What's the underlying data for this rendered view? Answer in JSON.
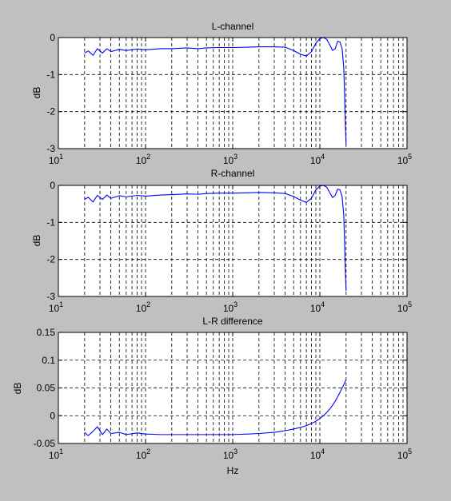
{
  "figure": {
    "background": "#c0c0c0",
    "trace_color": "#0000ff"
  },
  "chart_data": [
    {
      "type": "line",
      "title": "L-channel",
      "xlabel": "",
      "ylabel": "dB",
      "xscale": "log",
      "xlim": [
        10,
        100000
      ],
      "ylim": [
        -3,
        0
      ],
      "grid": true,
      "xticks": [
        10,
        100,
        1000,
        10000,
        100000
      ],
      "xtick_labels": [
        "10^1",
        "10^2",
        "10^3",
        "10^4",
        "10^5"
      ],
      "yticks": [
        0,
        -1,
        -2,
        -3
      ],
      "ytick_labels": [
        "0",
        "-1",
        "-2",
        "-3"
      ],
      "series": [
        {
          "x": [
            20,
            22,
            25,
            28,
            32,
            36,
            40,
            50,
            60,
            80,
            100,
            150,
            200,
            300,
            400,
            500,
            700,
            1000,
            1500,
            2000,
            3000,
            4000,
            5000,
            6000,
            7000,
            8000,
            9000,
            10000,
            11000,
            12000,
            13000,
            14000,
            15000,
            16000,
            17000,
            18000,
            18800,
            19200,
            19600,
            20000
          ],
          "y": [
            -0.42,
            -0.36,
            -0.48,
            -0.3,
            -0.42,
            -0.3,
            -0.38,
            -0.32,
            -0.35,
            -0.31,
            -0.33,
            -0.3,
            -0.3,
            -0.28,
            -0.3,
            -0.28,
            -0.27,
            -0.27,
            -0.26,
            -0.25,
            -0.25,
            -0.26,
            -0.35,
            -0.45,
            -0.5,
            -0.38,
            -0.15,
            -0.03,
            0.0,
            -0.05,
            -0.2,
            -0.35,
            -0.3,
            -0.1,
            -0.12,
            -0.3,
            -0.8,
            -1.5,
            -2.3,
            -2.9
          ]
        }
      ]
    },
    {
      "type": "line",
      "title": "R-channel",
      "xlabel": "",
      "ylabel": "dB",
      "xscale": "log",
      "xlim": [
        10,
        100000
      ],
      "ylim": [
        -3,
        0
      ],
      "grid": true,
      "xticks": [
        10,
        100,
        1000,
        10000,
        100000
      ],
      "xtick_labels": [
        "10^1",
        "10^2",
        "10^3",
        "10^4",
        "10^5"
      ],
      "yticks": [
        0,
        -1,
        -2,
        -3
      ],
      "ytick_labels": [
        "0",
        "-1",
        "-2",
        "-3"
      ],
      "series": [
        {
          "x": [
            20,
            22,
            25,
            28,
            32,
            36,
            40,
            50,
            60,
            80,
            100,
            150,
            200,
            300,
            400,
            500,
            700,
            1000,
            1500,
            2000,
            3000,
            4000,
            5000,
            6000,
            7000,
            8000,
            9000,
            10000,
            11000,
            12000,
            13000,
            14000,
            15000,
            16000,
            17000,
            18000,
            18800,
            19200,
            19600,
            20000
          ],
          "y": [
            -0.38,
            -0.32,
            -0.45,
            -0.27,
            -0.38,
            -0.26,
            -0.35,
            -0.28,
            -0.31,
            -0.27,
            -0.29,
            -0.26,
            -0.25,
            -0.23,
            -0.24,
            -0.22,
            -0.21,
            -0.21,
            -0.2,
            -0.19,
            -0.2,
            -0.22,
            -0.3,
            -0.4,
            -0.46,
            -0.35,
            -0.12,
            -0.02,
            0.0,
            -0.05,
            -0.2,
            -0.33,
            -0.27,
            -0.1,
            -0.12,
            -0.3,
            -0.8,
            -1.5,
            -2.3,
            -2.85
          ]
        }
      ]
    },
    {
      "type": "line",
      "title": "L-R difference",
      "xlabel": "Hz",
      "ylabel": "dB",
      "xscale": "log",
      "xlim": [
        10,
        100000
      ],
      "ylim": [
        -0.05,
        0.15
      ],
      "grid": true,
      "xticks": [
        10,
        100,
        1000,
        10000,
        100000
      ],
      "xtick_labels": [
        "10^1",
        "10^2",
        "10^3",
        "10^4",
        "10^5"
      ],
      "yticks": [
        0.15,
        0.1,
        0.05,
        0,
        -0.05
      ],
      "ytick_labels": [
        "0.15",
        "0.1",
        "0.05",
        "0",
        "-0.05"
      ],
      "series": [
        {
          "x": [
            20,
            22,
            25,
            28,
            32,
            36,
            40,
            50,
            60,
            80,
            100,
            150,
            200,
            300,
            500,
            700,
            1000,
            1500,
            2000,
            3000,
            4000,
            5000,
            6000,
            7000,
            8000,
            9000,
            10000,
            11000,
            12000,
            13000,
            14000,
            15000,
            16000,
            17000,
            18000,
            19000,
            20000
          ],
          "y": [
            -0.03,
            -0.036,
            -0.028,
            -0.02,
            -0.034,
            -0.024,
            -0.032,
            -0.03,
            -0.034,
            -0.031,
            -0.033,
            -0.034,
            -0.034,
            -0.034,
            -0.034,
            -0.034,
            -0.034,
            -0.033,
            -0.032,
            -0.03,
            -0.027,
            -0.024,
            -0.021,
            -0.018,
            -0.014,
            -0.01,
            -0.005,
            0.0,
            0.006,
            0.012,
            0.019,
            0.026,
            0.034,
            0.042,
            0.05,
            0.057,
            0.065
          ]
        }
      ]
    }
  ]
}
